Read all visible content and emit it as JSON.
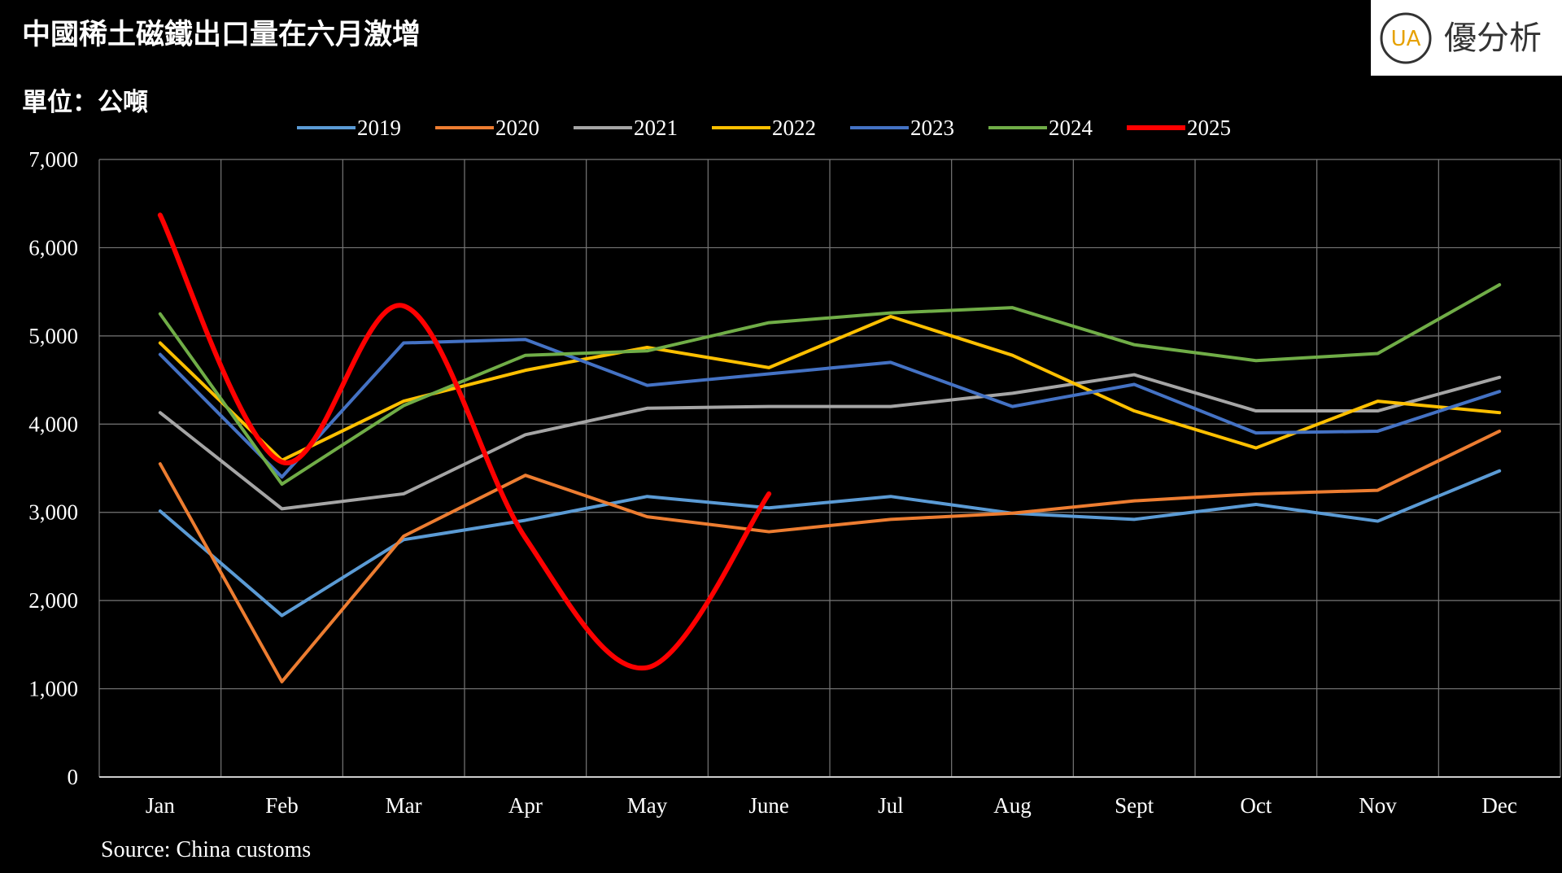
{
  "chart_data": {
    "type": "line",
    "title": "中國稀土磁鐵出口量在六月激增",
    "subtitle": "單位：公噸",
    "source": "Source: China customs",
    "logo": "優分析",
    "logo_mark": "UA",
    "categories": [
      "Jan",
      "Feb",
      "Mar",
      "Apr",
      "May",
      "June",
      "Jul",
      "Aug",
      "Sept",
      "Oct",
      "Nov",
      "Dec"
    ],
    "ylim": [
      0,
      7000
    ],
    "yticks": [
      0,
      {
        "value": 1000,
        "label": "1,000"
      },
      {
        "value": 2000,
        "label": "2,000"
      },
      {
        "value": 3000,
        "label": "3,000"
      },
      {
        "value": 4000,
        "label": "4,000"
      },
      {
        "value": 5000,
        "label": "5,000"
      },
      {
        "value": 6000,
        "label": "6,000"
      },
      {
        "value": 7000,
        "label": "7,000"
      }
    ],
    "grid": true,
    "legend": "top",
    "series": [
      {
        "name": "2019",
        "color": "#5b9bd5",
        "values": [
          3015,
          1830,
          2690,
          2910,
          3180,
          3050,
          3180,
          2990,
          2920,
          3090,
          2900,
          3470
        ]
      },
      {
        "name": "2020",
        "color": "#ed7d31",
        "values": [
          3550,
          1080,
          2730,
          3420,
          2950,
          2780,
          2920,
          2990,
          3130,
          3210,
          3250,
          3920
        ]
      },
      {
        "name": "2021",
        "color": "#a5a5a5",
        "values": [
          4130,
          3040,
          3210,
          3880,
          4180,
          4200,
          4200,
          4350,
          4560,
          4150,
          4150,
          4530
        ]
      },
      {
        "name": "2022",
        "color": "#ffc000",
        "values": [
          4920,
          3590,
          4260,
          4610,
          4870,
          4640,
          5220,
          4780,
          4150,
          3730,
          4260,
          4130
        ]
      },
      {
        "name": "2023",
        "color": "#4472c4",
        "values": [
          4790,
          3400,
          4920,
          4960,
          4440,
          4570,
          4700,
          4200,
          4450,
          3900,
          3920,
          4370
        ]
      },
      {
        "name": "2024",
        "color": "#70ad47",
        "values": [
          5250,
          3320,
          4210,
          4780,
          4830,
          5150,
          5260,
          5320,
          4900,
          4720,
          4800,
          5580
        ]
      },
      {
        "name": "2025",
        "color": "#ff0000",
        "smooth": true,
        "values": [
          6370,
          3570,
          5340,
          2710,
          1240,
          3210,
          null,
          null,
          null,
          null,
          null,
          null
        ]
      }
    ]
  }
}
